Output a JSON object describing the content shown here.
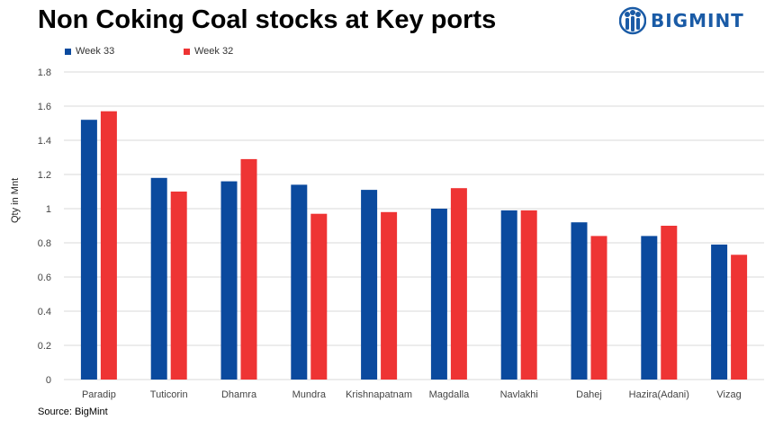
{
  "title": "Non Coking Coal stocks at Key ports",
  "brand": {
    "name": "BIGMINT",
    "color": "#1a5ba6",
    "icon": "bigmint-logo-icon"
  },
  "source": "Source: BigMint",
  "chart_data": {
    "type": "bar",
    "categories": [
      "Paradip",
      "Tuticorin",
      "Dhamra",
      "Mundra",
      "Krishnapatnam",
      "Magdalla",
      "Navlakhi",
      "Dahej",
      "Hazira(Adani)",
      "Vizag"
    ],
    "series": [
      {
        "name": "Week 33",
        "color": "#0b4a9e",
        "values": [
          1.52,
          1.18,
          1.16,
          1.14,
          1.11,
          1.0,
          0.99,
          0.92,
          0.84,
          0.79
        ]
      },
      {
        "name": "Week 32",
        "color": "#ee3434",
        "values": [
          1.57,
          1.1,
          1.29,
          0.97,
          0.98,
          1.12,
          0.99,
          0.84,
          0.9,
          0.73
        ]
      }
    ],
    "ylabel": "Qty in Mnt",
    "xlabel": "",
    "ylim": [
      0,
      1.8
    ],
    "yticks": [
      "0",
      "0.2",
      "0.4",
      "0.6",
      "0.8",
      "1",
      "1.2",
      "1.4",
      "1.6",
      "1.8"
    ],
    "grid": true,
    "legend_position": "top-left"
  }
}
